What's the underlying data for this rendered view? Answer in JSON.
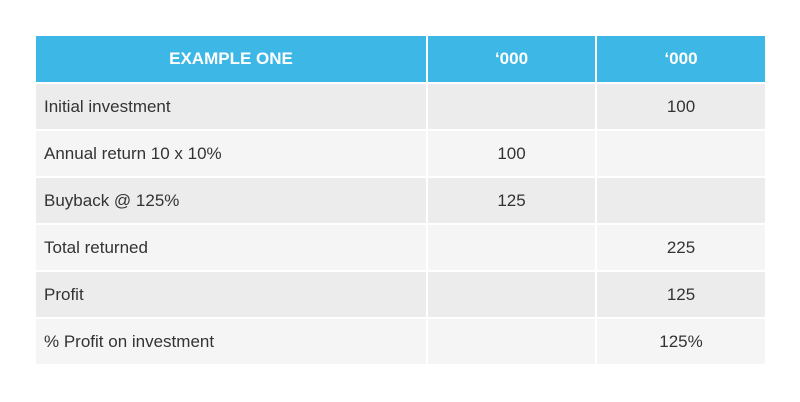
{
  "table": {
    "headers": [
      "EXAMPLE ONE",
      "‘000",
      "‘000"
    ],
    "rows": [
      {
        "label": "Initial investment",
        "col2": "",
        "col3": "100"
      },
      {
        "label": "Annual return 10 x 10%",
        "col2": "100",
        "col3": ""
      },
      {
        "label": "Buyback @ 125%",
        "col2": "125",
        "col3": ""
      },
      {
        "label": "Total returned",
        "col2": "",
        "col3": "225"
      },
      {
        "label": "Profit",
        "col2": "",
        "col3": "125"
      },
      {
        "label": "% Profit on investment",
        "col2": "",
        "col3": "125%"
      }
    ]
  },
  "colors": {
    "header_bg": "#3db8e6",
    "header_text": "#ffffff",
    "row_bg_odd": "#ececed",
    "row_bg_even": "#f5f5f6",
    "text": "#333333"
  }
}
